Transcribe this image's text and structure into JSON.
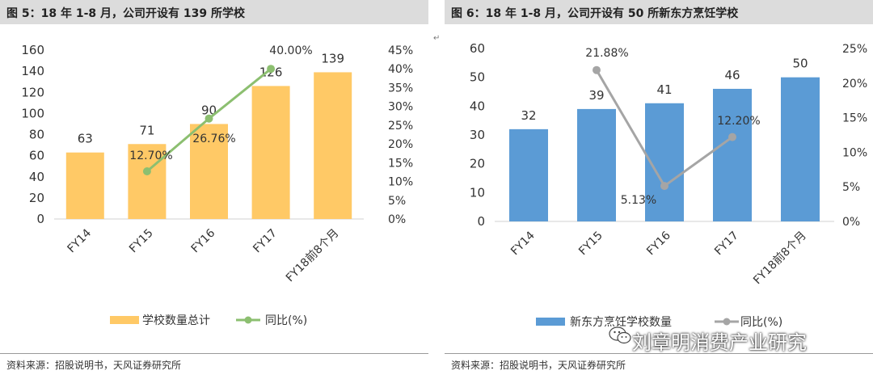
{
  "figures": [
    {
      "title": "图 5：18 年 1-8 月，公司开设有 139 所学校",
      "source": "资料来源：招股说明书，天风证券研究所"
    },
    {
      "title": "图 6：18 年 1-8 月，公司开设有 50 所新东方烹饪学校",
      "source": "资料来源：招股说明书，天风证券研究所"
    }
  ],
  "watermark": "刘章明消费产业研究",
  "chart_data": [
    {
      "type": "bar",
      "categories": [
        "FY14",
        "FY15",
        "FY16",
        "FY17",
        "FY18前8个月"
      ],
      "series": [
        {
          "name": "学校数量总计",
          "type": "bar",
          "axis": "left",
          "color": "#FFC966",
          "values": [
            63,
            71,
            90,
            126,
            139
          ],
          "labels": [
            "63",
            "71",
            "90",
            "126",
            "139"
          ]
        },
        {
          "name": "同比(%)",
          "type": "line",
          "axis": "right",
          "color": "#8CBF70",
          "values": [
            null,
            12.7,
            26.76,
            40.0,
            null
          ],
          "labels": [
            "",
            "12.70%",
            "26.76%",
            "40.00%",
            ""
          ]
        }
      ],
      "ylim": [
        0,
        160
      ],
      "yticks": [
        "0",
        "20",
        "40",
        "60",
        "80",
        "100",
        "120",
        "140",
        "160"
      ],
      "y2lim": [
        0,
        45
      ],
      "y2ticks": [
        "0%",
        "5%",
        "10%",
        "15%",
        "20%",
        "25%",
        "30%",
        "35%",
        "40%",
        "45%"
      ],
      "legend": "bottom"
    },
    {
      "type": "bar",
      "categories": [
        "FY14",
        "FY15",
        "FY16",
        "FY17",
        "FY18前8个月"
      ],
      "series": [
        {
          "name": "新东方烹饪学校数量",
          "type": "bar",
          "axis": "left",
          "color": "#5B9BD5",
          "values": [
            32,
            39,
            41,
            46,
            50
          ],
          "labels": [
            "32",
            "39",
            "41",
            "46",
            "50"
          ]
        },
        {
          "name": "同比(%)",
          "type": "line",
          "axis": "right",
          "color": "#A5A5A5",
          "values": [
            null,
            21.88,
            5.13,
            12.2,
            null
          ],
          "labels": [
            "",
            "21.88%",
            "5.13%",
            "12.20%",
            ""
          ]
        }
      ],
      "ylim": [
        0,
        60
      ],
      "yticks": [
        "0",
        "10",
        "20",
        "30",
        "40",
        "50",
        "60"
      ],
      "y2lim": [
        0,
        25
      ],
      "y2ticks": [
        "0%",
        "5%",
        "10%",
        "15%",
        "20%",
        "25%"
      ],
      "legend": "bottom"
    }
  ]
}
